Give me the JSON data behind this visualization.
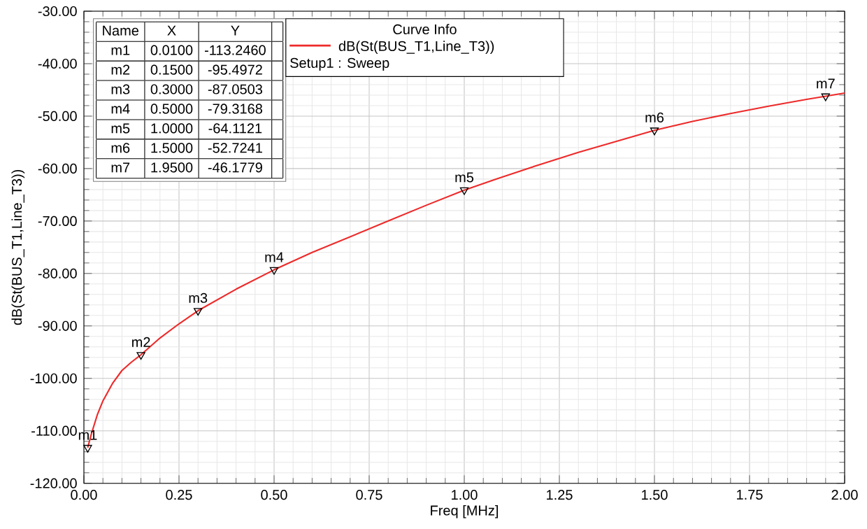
{
  "chart_data": {
    "type": "line",
    "xlabel": "Freq [MHz]",
    "ylabel": "dB(St(BUS_T1,Line_T3))",
    "legend_title": "Curve Info",
    "xlim": [
      0,
      2
    ],
    "ylim": [
      -120,
      -30
    ],
    "xticks": [
      {
        "value": 0,
        "label": "0.00"
      },
      {
        "value": 0.25,
        "label": "0.25"
      },
      {
        "value": 0.5,
        "label": "0.50"
      },
      {
        "value": 0.75,
        "label": "0.75"
      },
      {
        "value": 1,
        "label": "1.00"
      },
      {
        "value": 1.25,
        "label": "1.25"
      },
      {
        "value": 1.5,
        "label": "1.50"
      },
      {
        "value": 1.75,
        "label": "1.75"
      },
      {
        "value": 2,
        "label": "2.00"
      }
    ],
    "yticks": [
      {
        "value": -120,
        "label": "-120.00"
      },
      {
        "value": -110,
        "label": "-110.00"
      },
      {
        "value": -100,
        "label": "-100.00"
      },
      {
        "value": -90,
        "label": "-90.00"
      },
      {
        "value": -80,
        "label": "-80.00"
      },
      {
        "value": -70,
        "label": "-70.00"
      },
      {
        "value": -60,
        "label": "-60.00"
      },
      {
        "value": -50,
        "label": "-50.00"
      },
      {
        "value": -40,
        "label": "-40.00"
      },
      {
        "value": -30,
        "label": "-30.00"
      }
    ],
    "grid": true,
    "legend": "top",
    "series": [
      {
        "name": "dB(St(BUS_T1,Line_T3))",
        "color": "#ee2a2a",
        "marker": "none",
        "x": [
          0.01,
          0.02,
          0.035,
          0.05,
          0.075,
          0.1,
          0.125,
          0.15,
          0.2,
          0.25,
          0.3,
          0.4,
          0.5,
          0.6,
          0.7,
          0.8,
          0.9,
          1.0,
          1.1,
          1.2,
          1.3,
          1.4,
          1.5,
          1.6,
          1.7,
          1.8,
          1.9,
          1.95,
          2.0
        ],
        "values": [
          -113.2,
          -110.5,
          -107,
          -104.3,
          -101,
          -98.5,
          -96.9,
          -95.5,
          -92.3,
          -89.6,
          -87.1,
          -83,
          -79.3,
          -76,
          -73,
          -70,
          -67,
          -64.1,
          -61.6,
          -59.2,
          -56.9,
          -54.8,
          -52.7,
          -51,
          -49.5,
          -48.1,
          -46.8,
          -46.2,
          -45.6
        ]
      },
      {
        "type": "scatter",
        "color": "#000000",
        "marker": "triangle",
        "x": [
          0.01,
          0.15,
          0.3,
          0.5,
          1.0,
          1.5,
          1.95
        ],
        "values": [
          -113.2,
          -95.5,
          -87.1,
          -79.3,
          -64.1,
          -52.7,
          -46.2
        ]
      }
    ],
    "annotations": [
      "Setup1 : Sweep",
      "Name",
      "X",
      "Y",
      "m1",
      "0.0100",
      "-113.2460",
      "m2",
      "0.1500",
      "-95.4972",
      "m3",
      "0.3000",
      "-87.0503",
      "m4",
      "0.5000",
      "-79.3168",
      "m5",
      "1.0000",
      "-64.1121",
      "m6",
      "1.5000",
      "-52.7241",
      "m7",
      "1.9500",
      "-46.1779",
      {
        "text": "m1",
        "x": 0.01,
        "y": -113.2
      },
      {
        "text": "m2",
        "x": 0.15,
        "y": -95.5
      },
      {
        "text": "m3",
        "x": 0.3,
        "y": -87.1
      },
      {
        "text": "m4",
        "x": 0.5,
        "y": -79.3
      },
      {
        "text": "m5",
        "x": 1.0,
        "y": -64.1
      },
      {
        "text": "m6",
        "x": 1.5,
        "y": -52.7
      },
      {
        "text": "m7",
        "x": 1.95,
        "y": -46.2
      }
    ]
  }
}
